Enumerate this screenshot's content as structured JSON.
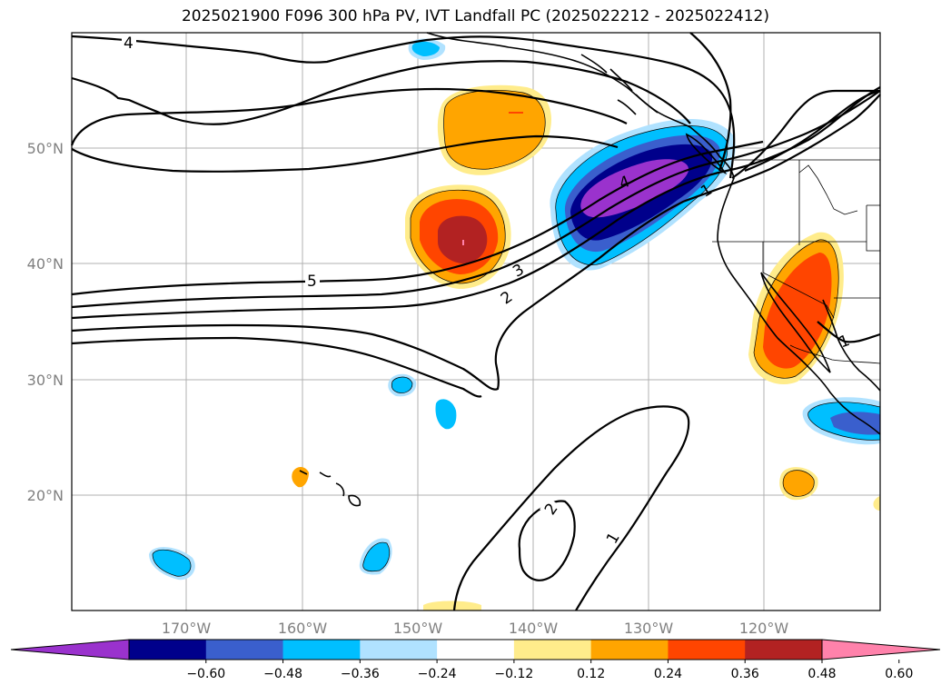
{
  "title": "2025021900 F096 300 hPa PV, IVT Landfall PC (2025022212 - 2025022412)",
  "map": {
    "lon_range": [
      -180,
      -110
    ],
    "lat_range": [
      10,
      60
    ],
    "lat_ticks": [
      "50°N",
      "40°N",
      "30°N",
      "20°N"
    ],
    "lon_ticks": [
      "170°W",
      "160°W",
      "150°W",
      "140°W",
      "130°W",
      "120°W"
    ],
    "grid": true,
    "pv_contour_labels": [
      "4",
      "5",
      "3",
      "2",
      "4",
      "1",
      "1",
      "2",
      "1"
    ]
  },
  "colorbar": {
    "ticks": [
      "−0.60",
      "−0.48",
      "−0.36",
      "−0.24",
      "−0.12",
      "0.12",
      "0.24",
      "0.36",
      "0.48",
      "0.60"
    ],
    "colors": [
      "#9a32cd",
      "#00008b",
      "#3a5fcd",
      "#00bfff",
      "#b0e2ff",
      "#ffffff",
      "#ffec8b",
      "#ffa500",
      "#ff4500",
      "#b22222",
      "#ff82ab"
    ],
    "extend": "both"
  }
}
